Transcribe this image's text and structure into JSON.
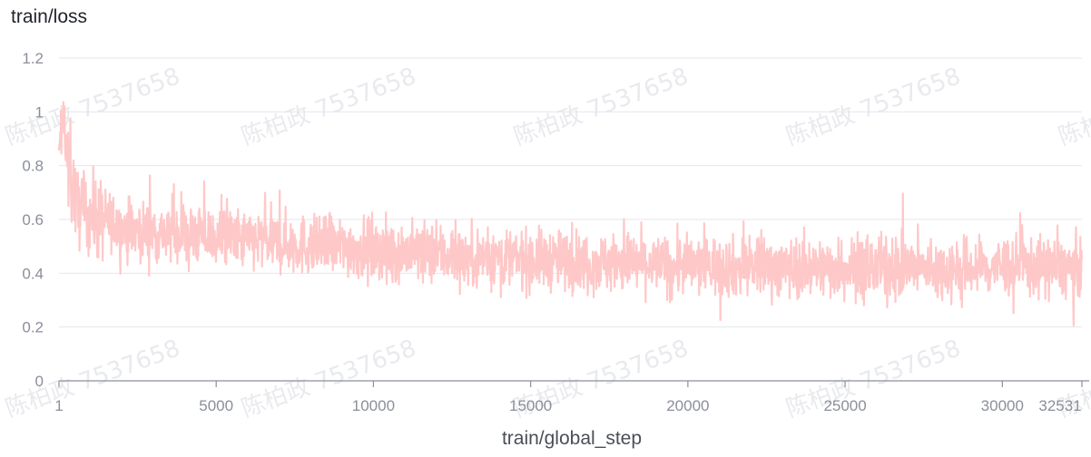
{
  "title": "train/loss",
  "watermark_text": "陈柏政 7537658",
  "chart_data": {
    "type": "line",
    "title": "train/loss",
    "xlabel": "train/global_step",
    "ylabel": "",
    "xlim": [
      1,
      32531
    ],
    "ylim": [
      0,
      1.2
    ],
    "x_ticks": [
      1,
      5000,
      10000,
      15000,
      20000,
      25000,
      30000,
      32531
    ],
    "x_tick_labels": [
      "1",
      "5000",
      "10000",
      "15000",
      "20000",
      "25000",
      "30000",
      "32531"
    ],
    "y_ticks": [
      0,
      0.2,
      0.4,
      0.6,
      0.8,
      1,
      1.2
    ],
    "y_tick_labels": [
      "0",
      "0.2",
      "0.4",
      "0.6",
      "0.8",
      "1",
      "1.2"
    ],
    "grid": true,
    "series": [
      {
        "color": "#ffc8c8",
        "x": [
          1,
          50,
          100,
          150,
          200,
          250,
          300,
          350,
          400,
          450,
          500,
          600,
          700,
          800,
          900,
          1000,
          1200,
          1400,
          1600,
          1800,
          2000,
          2300,
          2600,
          3000,
          3500,
          4000,
          4500,
          5000,
          5500,
          6000,
          6500,
          7000,
          7500,
          8000,
          8500,
          9000,
          9500,
          10000,
          10500,
          11000,
          11500,
          12000,
          12500,
          13000,
          13500,
          14000,
          14500,
          15000,
          15500,
          16000,
          16500,
          17000,
          17500,
          18000,
          18500,
          19000,
          19500,
          20000,
          20500,
          21000,
          21500,
          22000,
          22500,
          23000,
          23500,
          24000,
          24500,
          25000,
          25500,
          26000,
          26500,
          27000,
          27500,
          28000,
          28500,
          29000,
          29500,
          30000,
          30500,
          31000,
          31500,
          32000,
          32531
        ],
        "y": [
          0.78,
          0.95,
          0.88,
          1.05,
          0.82,
          0.86,
          0.72,
          0.9,
          0.7,
          0.76,
          0.68,
          0.64,
          0.66,
          0.6,
          0.62,
          0.63,
          0.6,
          0.6,
          0.59,
          0.58,
          0.57,
          0.56,
          0.56,
          0.55,
          0.55,
          0.55,
          0.54,
          0.53,
          0.53,
          0.52,
          0.52,
          0.51,
          0.51,
          0.5,
          0.5,
          0.5,
          0.49,
          0.49,
          0.48,
          0.48,
          0.48,
          0.47,
          0.47,
          0.46,
          0.46,
          0.46,
          0.45,
          0.45,
          0.45,
          0.45,
          0.44,
          0.44,
          0.44,
          0.44,
          0.44,
          0.43,
          0.43,
          0.43,
          0.43,
          0.43,
          0.42,
          0.43,
          0.43,
          0.42,
          0.42,
          0.42,
          0.42,
          0.42,
          0.42,
          0.42,
          0.42,
          0.42,
          0.42,
          0.41,
          0.42,
          0.42,
          0.42,
          0.43,
          0.43,
          0.42,
          0.42,
          0.42,
          0.41
        ]
      }
    ]
  }
}
